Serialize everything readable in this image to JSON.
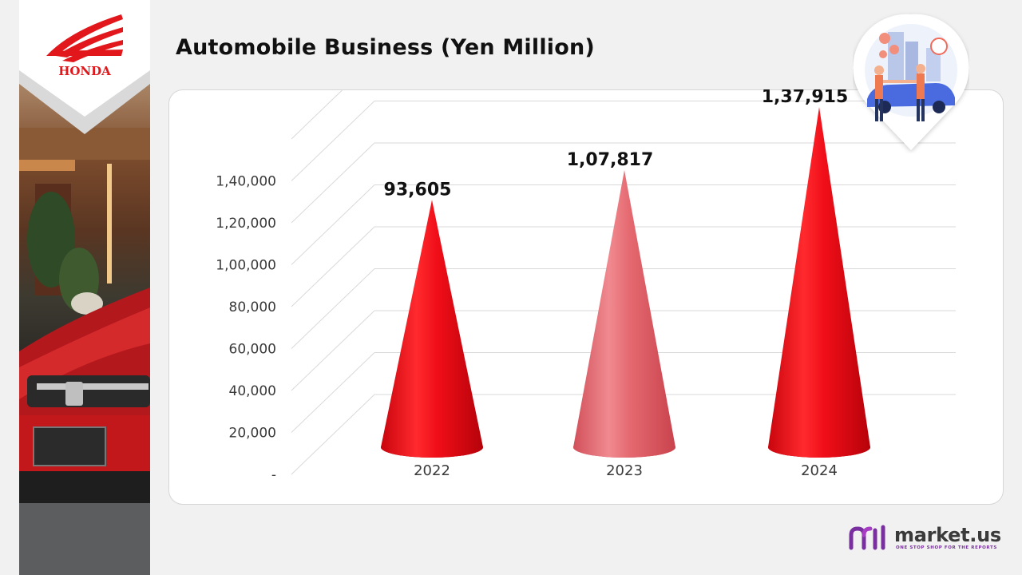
{
  "page": {
    "title": "Automobile Business (Yen Million)",
    "logo_text": "HONDA",
    "brand": {
      "name": "market.us",
      "tagline": "ONE STOP SHOP FOR THE REPORTS"
    }
  },
  "colors": {
    "accent": "#e2171b",
    "cone_main": "#e8101a",
    "cone_highlight": "#e1666e",
    "brand_purple": "#7a2fa0"
  },
  "chart_data": {
    "type": "bar",
    "bar_shape": "cone",
    "title": "Automobile Business (Yen Million)",
    "xlabel": "",
    "ylabel": "",
    "categories": [
      "2022",
      "2023",
      "2024"
    ],
    "values": [
      93605,
      107817,
      137915
    ],
    "value_labels": [
      "93,605",
      "1,07,817",
      "1,37,915"
    ],
    "ylim": [
      0,
      160000
    ],
    "yticks": [
      0,
      20000,
      40000,
      60000,
      80000,
      100000,
      120000,
      140000
    ],
    "ytick_labels": [
      "-",
      "20,000",
      "40,000",
      "60,000",
      "80,000",
      "1,00,000",
      "1,20,000",
      "1,40,000"
    ],
    "grid": true,
    "highlight_index": 1,
    "legend": "none"
  }
}
